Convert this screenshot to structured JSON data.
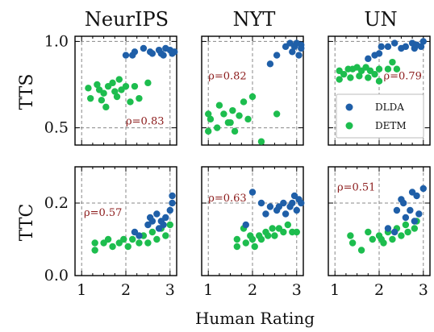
{
  "chart_data": {
    "type": "scatter",
    "columns": [
      "NeurIPS",
      "NYT",
      "UN"
    ],
    "rows": [
      {
        "label": "TTS",
        "ylim": [
          0.4,
          1.03
        ],
        "yticks": [
          "0.5",
          "1.0"
        ],
        "yticks_values": [
          0.5,
          1.0
        ]
      },
      {
        "label": "TTC",
        "ylim": [
          0.0,
          0.3
        ],
        "yticks": [
          "0.0",
          "0.2"
        ],
        "yticks_values": [
          0.0,
          0.2
        ]
      }
    ],
    "xlabel": "Human Rating",
    "xlim": [
      0.85,
      3.15
    ],
    "xticks": [
      "1",
      "2",
      "3"
    ],
    "xticks_values": [
      1,
      2,
      3
    ],
    "legend": {
      "placement": "bottom-right",
      "panel": "TTS-UN",
      "entries": [
        "DLDA",
        "DETM"
      ]
    },
    "colors": {
      "DLDA": "#1f5fa8",
      "DETM": "#1dbd4e",
      "rho": "#8b1a1a"
    },
    "panels": [
      {
        "row": "TTS",
        "col": "NeurIPS",
        "rho": "ρ=0.83",
        "DLDA": [
          [
            2.0,
            0.92
          ],
          [
            2.15,
            0.92
          ],
          [
            2.2,
            0.94
          ],
          [
            2.4,
            0.96
          ],
          [
            2.55,
            0.94
          ],
          [
            2.6,
            0.93
          ],
          [
            2.75,
            0.95
          ],
          [
            2.8,
            0.93
          ],
          [
            2.85,
            0.92
          ],
          [
            2.9,
            0.96
          ],
          [
            3.0,
            0.95
          ],
          [
            3.05,
            0.93
          ],
          [
            3.1,
            0.94
          ]
        ],
        "DETM": [
          [
            1.15,
            0.73
          ],
          [
            1.2,
            0.67
          ],
          [
            1.35,
            0.75
          ],
          [
            1.4,
            0.72
          ],
          [
            1.45,
            0.66
          ],
          [
            1.5,
            0.7
          ],
          [
            1.55,
            0.62
          ],
          [
            1.6,
            0.74
          ],
          [
            1.7,
            0.76
          ],
          [
            1.75,
            0.71
          ],
          [
            1.8,
            0.68
          ],
          [
            1.85,
            0.78
          ],
          [
            1.9,
            0.72
          ],
          [
            2.0,
            0.74
          ],
          [
            2.1,
            0.65
          ],
          [
            2.2,
            0.74
          ],
          [
            2.3,
            0.67
          ],
          [
            2.5,
            0.76
          ]
        ]
      },
      {
        "row": "TTS",
        "col": "NYT",
        "rho": "ρ=0.82",
        "DLDA": [
          [
            2.4,
            0.87
          ],
          [
            2.55,
            0.92
          ],
          [
            2.75,
            0.97
          ],
          [
            2.85,
            0.99
          ],
          [
            2.9,
            0.94
          ],
          [
            2.95,
            0.97
          ],
          [
            3.0,
            0.99
          ],
          [
            3.05,
            0.92
          ],
          [
            3.1,
            0.96
          ],
          [
            3.1,
            0.98
          ]
        ],
        "DETM": [
          [
            1.0,
            0.48
          ],
          [
            1.0,
            0.58
          ],
          [
            1.05,
            0.55
          ],
          [
            1.2,
            0.5
          ],
          [
            1.25,
            0.63
          ],
          [
            1.35,
            0.58
          ],
          [
            1.45,
            0.53
          ],
          [
            1.5,
            0.53
          ],
          [
            1.55,
            0.6
          ],
          [
            1.6,
            0.48
          ],
          [
            1.7,
            0.57
          ],
          [
            1.8,
            0.65
          ],
          [
            1.9,
            0.55
          ],
          [
            2.0,
            0.68
          ],
          [
            2.2,
            0.42
          ],
          [
            2.55,
            0.58
          ]
        ]
      },
      {
        "row": "TTS",
        "col": "UN",
        "rho": "ρ=0.79",
        "DLDA": [
          [
            1.75,
            0.9
          ],
          [
            1.9,
            0.92
          ],
          [
            2.0,
            0.93
          ],
          [
            2.05,
            0.97
          ],
          [
            2.2,
            0.97
          ],
          [
            2.35,
            0.99
          ],
          [
            2.5,
            0.96
          ],
          [
            2.6,
            0.97
          ],
          [
            2.75,
            0.99
          ],
          [
            2.8,
            0.96
          ],
          [
            2.85,
            0.98
          ],
          [
            2.95,
            0.97
          ],
          [
            3.0,
            1.0
          ]
        ],
        "DETM": [
          [
            1.1,
            0.83
          ],
          [
            1.1,
            0.78
          ],
          [
            1.2,
            0.81
          ],
          [
            1.3,
            0.84
          ],
          [
            1.35,
            0.79
          ],
          [
            1.4,
            0.84
          ],
          [
            1.5,
            0.85
          ],
          [
            1.55,
            0.8
          ],
          [
            1.6,
            0.83
          ],
          [
            1.7,
            0.85
          ],
          [
            1.75,
            0.79
          ],
          [
            1.8,
            0.83
          ],
          [
            1.9,
            0.81
          ],
          [
            2.0,
            0.84
          ],
          [
            2.0,
            0.77
          ],
          [
            2.2,
            0.84
          ],
          [
            2.3,
            0.88
          ],
          [
            2.4,
            0.84
          ]
        ]
      },
      {
        "row": "TTC",
        "col": "NeurIPS",
        "rho": "ρ=0.57",
        "DLDA": [
          [
            2.2,
            0.12
          ],
          [
            2.3,
            0.11
          ],
          [
            2.5,
            0.14
          ],
          [
            2.55,
            0.16
          ],
          [
            2.6,
            0.15
          ],
          [
            2.7,
            0.17
          ],
          [
            2.75,
            0.13
          ],
          [
            2.8,
            0.15
          ],
          [
            2.85,
            0.14
          ],
          [
            2.9,
            0.16
          ],
          [
            3.0,
            0.18
          ],
          [
            3.05,
            0.2
          ],
          [
            3.05,
            0.22
          ]
        ],
        "DETM": [
          [
            1.3,
            0.09
          ],
          [
            1.3,
            0.07
          ],
          [
            1.5,
            0.09
          ],
          [
            1.6,
            0.1
          ],
          [
            1.7,
            0.08
          ],
          [
            1.85,
            0.09
          ],
          [
            1.95,
            0.1
          ],
          [
            2.05,
            0.08
          ],
          [
            2.15,
            0.1
          ],
          [
            2.3,
            0.09
          ],
          [
            2.4,
            0.11
          ],
          [
            2.5,
            0.09
          ],
          [
            2.6,
            0.12
          ],
          [
            2.7,
            0.1
          ],
          [
            2.8,
            0.13
          ],
          [
            2.9,
            0.11
          ],
          [
            3.0,
            0.14
          ]
        ]
      },
      {
        "row": "TTC",
        "col": "NYT",
        "rho": "ρ=0.63",
        "DLDA": [
          [
            1.85,
            0.14
          ],
          [
            2.0,
            0.23
          ],
          [
            2.2,
            0.2
          ],
          [
            2.3,
            0.17
          ],
          [
            2.4,
            0.19
          ],
          [
            2.55,
            0.18
          ],
          [
            2.6,
            0.19
          ],
          [
            2.7,
            0.2
          ],
          [
            2.75,
            0.17
          ],
          [
            2.85,
            0.19
          ],
          [
            2.9,
            0.2
          ],
          [
            2.95,
            0.22
          ],
          [
            3.0,
            0.18
          ],
          [
            3.05,
            0.21
          ],
          [
            3.1,
            0.2
          ]
        ],
        "DETM": [
          [
            1.65,
            0.1
          ],
          [
            1.65,
            0.08
          ],
          [
            1.8,
            0.13
          ],
          [
            1.85,
            0.09
          ],
          [
            1.95,
            0.11
          ],
          [
            2.0,
            0.1
          ],
          [
            2.05,
            0.08
          ],
          [
            2.15,
            0.11
          ],
          [
            2.2,
            0.1
          ],
          [
            2.3,
            0.12
          ],
          [
            2.35,
            0.11
          ],
          [
            2.45,
            0.13
          ],
          [
            2.5,
            0.11
          ],
          [
            2.6,
            0.13
          ],
          [
            2.7,
            0.12
          ],
          [
            2.8,
            0.14
          ],
          [
            2.9,
            0.12
          ],
          [
            3.0,
            0.12
          ]
        ]
      },
      {
        "row": "TTC",
        "col": "UN",
        "rho": "ρ=0.51",
        "DLDA": [
          [
            2.2,
            0.13
          ],
          [
            2.35,
            0.12
          ],
          [
            2.4,
            0.18
          ],
          [
            2.5,
            0.21
          ],
          [
            2.55,
            0.2
          ],
          [
            2.6,
            0.16
          ],
          [
            2.7,
            0.18
          ],
          [
            2.75,
            0.23
          ],
          [
            2.8,
            0.15
          ],
          [
            2.85,
            0.22
          ],
          [
            2.9,
            0.17
          ],
          [
            3.0,
            0.24
          ]
        ],
        "DETM": [
          [
            1.35,
            0.11
          ],
          [
            1.4,
            0.09
          ],
          [
            1.6,
            0.07
          ],
          [
            1.75,
            0.12
          ],
          [
            1.85,
            0.1
          ],
          [
            2.0,
            0.11
          ],
          [
            2.05,
            0.1
          ],
          [
            2.1,
            0.09
          ],
          [
            2.2,
            0.12
          ],
          [
            2.3,
            0.1
          ],
          [
            2.4,
            0.13
          ],
          [
            2.5,
            0.11
          ],
          [
            2.6,
            0.14
          ],
          [
            2.65,
            0.12
          ],
          [
            2.8,
            0.13
          ],
          [
            2.85,
            0.15
          ]
        ]
      }
    ]
  }
}
